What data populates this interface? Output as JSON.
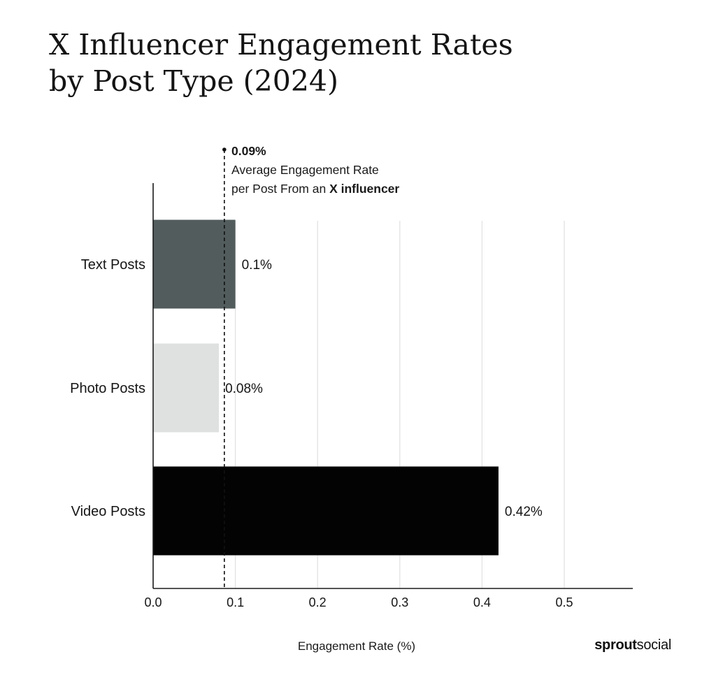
{
  "title_lines": [
    "X Influencer Engagement Rates",
    "by Post Type (2024)"
  ],
  "annotation": {
    "value_label": "0.09%",
    "line1": "Average Engagement Rate",
    "line2_prefix": "per Post From an ",
    "line2_bold": "X influencer"
  },
  "brand": {
    "bold": "sprout",
    "light": "social"
  },
  "colors": {
    "text_posts": "#525c5c",
    "photo_posts": "#dfe1e1",
    "video_posts": "#030303",
    "grid": "#e2e2e2",
    "axis": "#1a1a1a"
  },
  "chart_data": {
    "type": "bar",
    "orientation": "horizontal",
    "title": "X Influencer Engagement Rates by Post Type (2024)",
    "xlabel": "Engagement Rate (%)",
    "ylabel": "",
    "categories": [
      "Text Posts",
      "Photo Posts",
      "Video Posts"
    ],
    "values": [
      0.1,
      0.08,
      0.42
    ],
    "data_labels": [
      "0.1%",
      "0.08%",
      "0.42%"
    ],
    "xlim": [
      0,
      0.58
    ],
    "xticks": [
      0.0,
      0.1,
      0.2,
      0.3,
      0.4,
      0.5
    ],
    "xtick_labels": [
      "0.0",
      "0.1",
      "0.2",
      "0.3",
      "0.4",
      "0.5"
    ],
    "reference_line": {
      "value": 0.09,
      "label": "0.09%",
      "style": "dashed"
    },
    "grid": "vertical"
  }
}
